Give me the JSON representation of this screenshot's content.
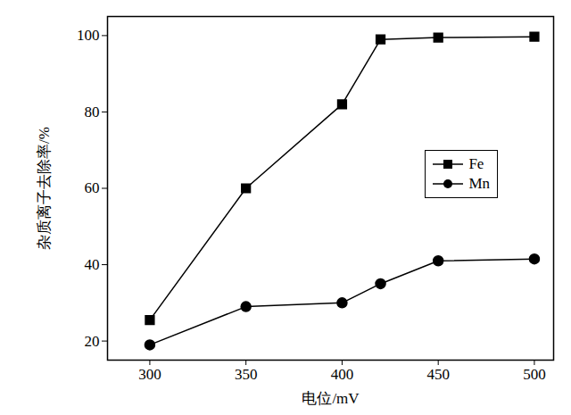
{
  "chart_data": {
    "type": "line",
    "x_label": "电位/mV",
    "y_label": "杂质离子去除率/%",
    "x": [
      300,
      350,
      400,
      420,
      450,
      500
    ],
    "series": [
      {
        "name": "Fe",
        "color": "#000000",
        "marker": "square",
        "values": [
          25.5,
          60,
          82,
          99,
          99.5,
          99.7
        ]
      },
      {
        "name": "Mn",
        "color": "#000000",
        "marker": "circle",
        "values": [
          19,
          29,
          30,
          35,
          41,
          41.5
        ]
      }
    ],
    "xlim": [
      278,
      510
    ],
    "xticks": [
      300,
      350,
      400,
      450,
      500
    ],
    "ylim": [
      15,
      105
    ],
    "yticks": [
      20,
      40,
      60,
      80,
      100
    ],
    "legend": "right",
    "grid": false
  }
}
